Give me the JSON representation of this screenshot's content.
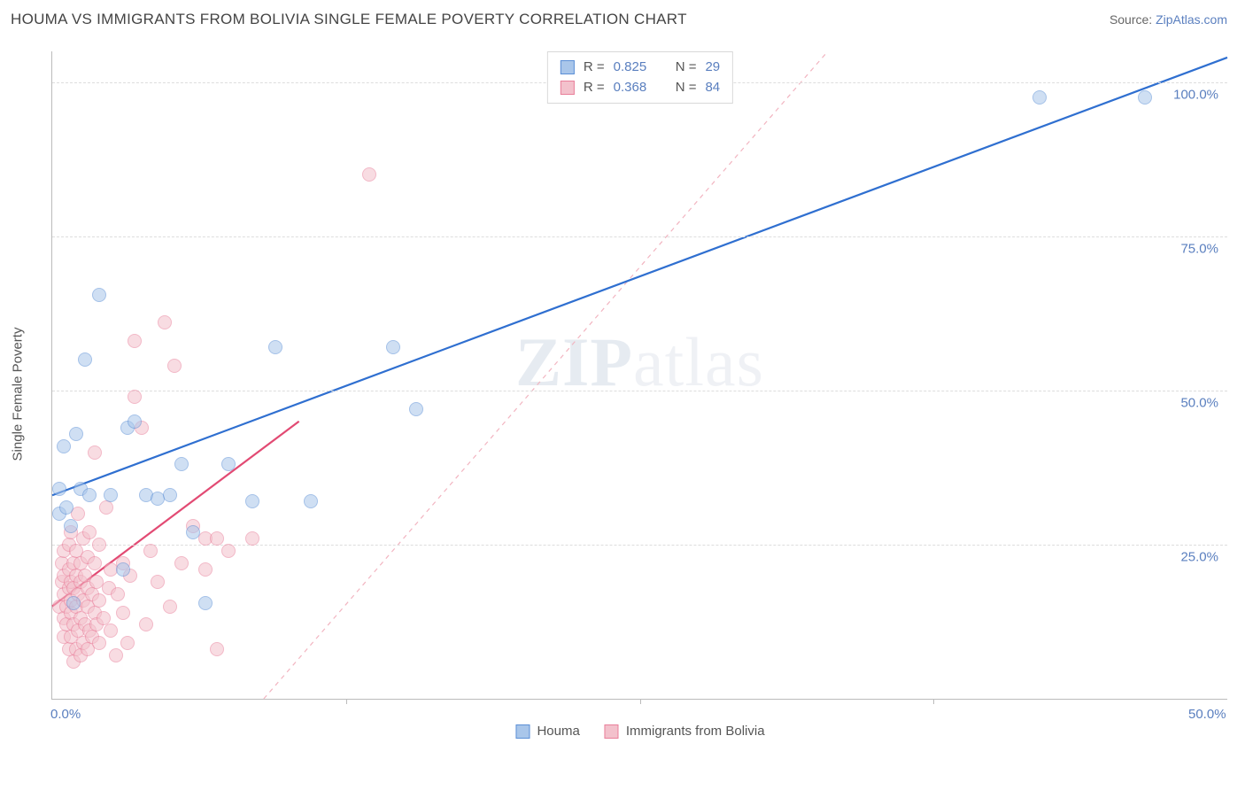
{
  "title": "HOUMA VS IMMIGRANTS FROM BOLIVIA SINGLE FEMALE POVERTY CORRELATION CHART",
  "source_label": "Source:",
  "source_link": "ZipAtlas.com",
  "ylabel": "Single Female Poverty",
  "watermark": {
    "zip": "ZIP",
    "rest": "atlas"
  },
  "chart": {
    "type": "scatter",
    "xlim": [
      0,
      50
    ],
    "ylim": [
      0,
      105
    ],
    "x_ticks": [
      0,
      50
    ],
    "x_tick_labels": [
      "0.0%",
      "50.0%"
    ],
    "x_minor_tick_count": 3,
    "y_ticks": [
      25,
      50,
      75,
      100
    ],
    "y_tick_labels": [
      "25.0%",
      "50.0%",
      "75.0%",
      "100.0%"
    ],
    "grid_color": "#dddddd",
    "axis_color": "#bbbbbb",
    "background_color": "#ffffff",
    "point_radius": 8,
    "point_opacity": 0.55,
    "series": [
      {
        "name": "Houma",
        "fill": "#a9c6ea",
        "stroke": "#5b8fd6",
        "R": 0.825,
        "N": 29,
        "trend": {
          "x1": 0,
          "y1": 33,
          "x2": 50,
          "y2": 104,
          "color": "#2f6fd0",
          "width": 2.2,
          "dash": ""
        },
        "dashed_trend": {
          "x1": 9,
          "y1": 0,
          "x2": 33,
          "y2": 105,
          "color": "#f2b4c0",
          "width": 1.2
        },
        "points": [
          [
            0.3,
            30
          ],
          [
            0.3,
            34
          ],
          [
            0.5,
            41
          ],
          [
            0.6,
            31
          ],
          [
            0.8,
            28
          ],
          [
            1.0,
            43
          ],
          [
            1.2,
            34
          ],
          [
            1.6,
            33
          ],
          [
            2.0,
            65.5
          ],
          [
            2.5,
            33
          ],
          [
            3.0,
            21
          ],
          [
            3.2,
            44
          ],
          [
            3.5,
            45
          ],
          [
            4.0,
            33
          ],
          [
            4.5,
            32.5
          ],
          [
            5.0,
            33
          ],
          [
            5.5,
            38
          ],
          [
            6.0,
            27
          ],
          [
            7.5,
            38
          ],
          [
            8.5,
            32
          ],
          [
            9.5,
            57
          ],
          [
            11.0,
            32
          ],
          [
            14.5,
            57
          ],
          [
            15.5,
            47
          ],
          [
            1.4,
            55
          ],
          [
            42.0,
            97.5
          ],
          [
            46.5,
            97.5
          ],
          [
            0.9,
            15.5
          ],
          [
            6.5,
            15.5
          ]
        ]
      },
      {
        "name": "Immigrants from Bolivia",
        "fill": "#f3c1cc",
        "stroke": "#e97f9a",
        "R": 0.368,
        "N": 84,
        "trend": {
          "x1": 0,
          "y1": 15,
          "x2": 10.5,
          "y2": 45,
          "color": "#e24a73",
          "width": 2.2,
          "dash": ""
        },
        "points": [
          [
            0.3,
            15
          ],
          [
            0.4,
            19
          ],
          [
            0.4,
            22
          ],
          [
            0.5,
            10
          ],
          [
            0.5,
            13
          ],
          [
            0.5,
            17
          ],
          [
            0.5,
            20
          ],
          [
            0.5,
            24
          ],
          [
            0.6,
            12
          ],
          [
            0.6,
            15
          ],
          [
            0.7,
            8
          ],
          [
            0.7,
            18
          ],
          [
            0.7,
            21
          ],
          [
            0.7,
            25
          ],
          [
            0.8,
            10
          ],
          [
            0.8,
            14
          ],
          [
            0.8,
            16
          ],
          [
            0.8,
            19
          ],
          [
            0.8,
            27
          ],
          [
            0.9,
            6
          ],
          [
            0.9,
            12
          ],
          [
            0.9,
            18
          ],
          [
            0.9,
            22
          ],
          [
            1.0,
            8
          ],
          [
            1.0,
            15
          ],
          [
            1.0,
            20
          ],
          [
            1.0,
            24
          ],
          [
            1.1,
            11
          ],
          [
            1.1,
            17
          ],
          [
            1.1,
            30
          ],
          [
            1.2,
            7
          ],
          [
            1.2,
            13
          ],
          [
            1.2,
            19
          ],
          [
            1.2,
            22
          ],
          [
            1.3,
            9
          ],
          [
            1.3,
            16
          ],
          [
            1.3,
            26
          ],
          [
            1.4,
            12
          ],
          [
            1.4,
            20
          ],
          [
            1.5,
            8
          ],
          [
            1.5,
            15
          ],
          [
            1.5,
            18
          ],
          [
            1.5,
            23
          ],
          [
            1.6,
            11
          ],
          [
            1.6,
            27
          ],
          [
            1.7,
            10
          ],
          [
            1.7,
            17
          ],
          [
            1.8,
            14
          ],
          [
            1.8,
            22
          ],
          [
            1.8,
            40
          ],
          [
            1.9,
            12
          ],
          [
            1.9,
            19
          ],
          [
            2.0,
            9
          ],
          [
            2.0,
            16
          ],
          [
            2.0,
            25
          ],
          [
            2.2,
            13
          ],
          [
            2.3,
            31
          ],
          [
            2.4,
            18
          ],
          [
            2.5,
            11
          ],
          [
            2.5,
            21
          ],
          [
            2.7,
            7
          ],
          [
            2.8,
            17
          ],
          [
            3.0,
            14
          ],
          [
            3.0,
            22
          ],
          [
            3.2,
            9
          ],
          [
            3.3,
            20
          ],
          [
            3.5,
            49
          ],
          [
            3.5,
            58
          ],
          [
            3.8,
            44
          ],
          [
            4.0,
            12
          ],
          [
            4.2,
            24
          ],
          [
            4.5,
            19
          ],
          [
            4.8,
            61
          ],
          [
            5.0,
            15
          ],
          [
            5.2,
            54
          ],
          [
            5.5,
            22
          ],
          [
            6.0,
            28
          ],
          [
            6.5,
            26
          ],
          [
            6.5,
            21
          ],
          [
            7.0,
            26
          ],
          [
            7.0,
            8
          ],
          [
            7.5,
            24
          ],
          [
            8.5,
            26
          ],
          [
            13.5,
            85
          ]
        ]
      }
    ]
  },
  "legend_top_format": {
    "R_label": "R =",
    "N_label": "N ="
  },
  "legend_bottom": [
    "Houma",
    "Immigrants from Bolivia"
  ]
}
